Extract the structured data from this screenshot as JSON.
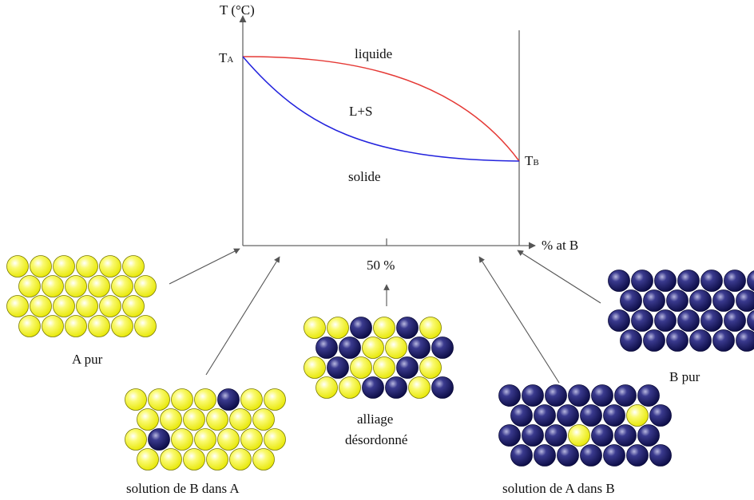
{
  "diagram": {
    "axis_y_label": "T (°C)",
    "axis_x_label": "% at B",
    "mid_tick_label": "50 %",
    "ta_main": "T",
    "ta_sub": "A",
    "tb_main": "T",
    "tb_sub": "B",
    "region_liquid": "liquide",
    "region_two_phase": "L+S",
    "region_solid": "solide"
  },
  "lattices": {
    "pure_a": {
      "caption": "A pur",
      "rows": [
        "yyyyyy",
        "yyyyyy",
        "yyyyyy",
        "yyyyyy"
      ]
    },
    "solution_b_in_a": {
      "caption": "solution de B dans A",
      "rows": [
        "yyyybyy",
        "yyyyyy",
        "ybyyyyy",
        "yyyyyy"
      ]
    },
    "disordered_alloy": {
      "caption_line1": "alliage",
      "caption_line2": "désordonné",
      "rows": [
        "yybyby",
        "bbyybb",
        "ybyyby",
        "yybbyb"
      ]
    },
    "solution_a_in_b": {
      "caption": "solution de A dans B",
      "rows": [
        "bbbbbbb",
        "bbbbbyb",
        "bbbybbb",
        "bbbbbbb"
      ]
    },
    "pure_b": {
      "caption": "B pur",
      "rows": [
        "bbbbbbb",
        "bbbbbbb",
        "bbbbbbb",
        "bbbbbbb"
      ]
    }
  },
  "colors": {
    "atom_a": "#ffff33",
    "atom_b": "#1a1a6e",
    "liquidus": "#e53935",
    "solidus": "#2222dd",
    "axis": "#666666"
  }
}
